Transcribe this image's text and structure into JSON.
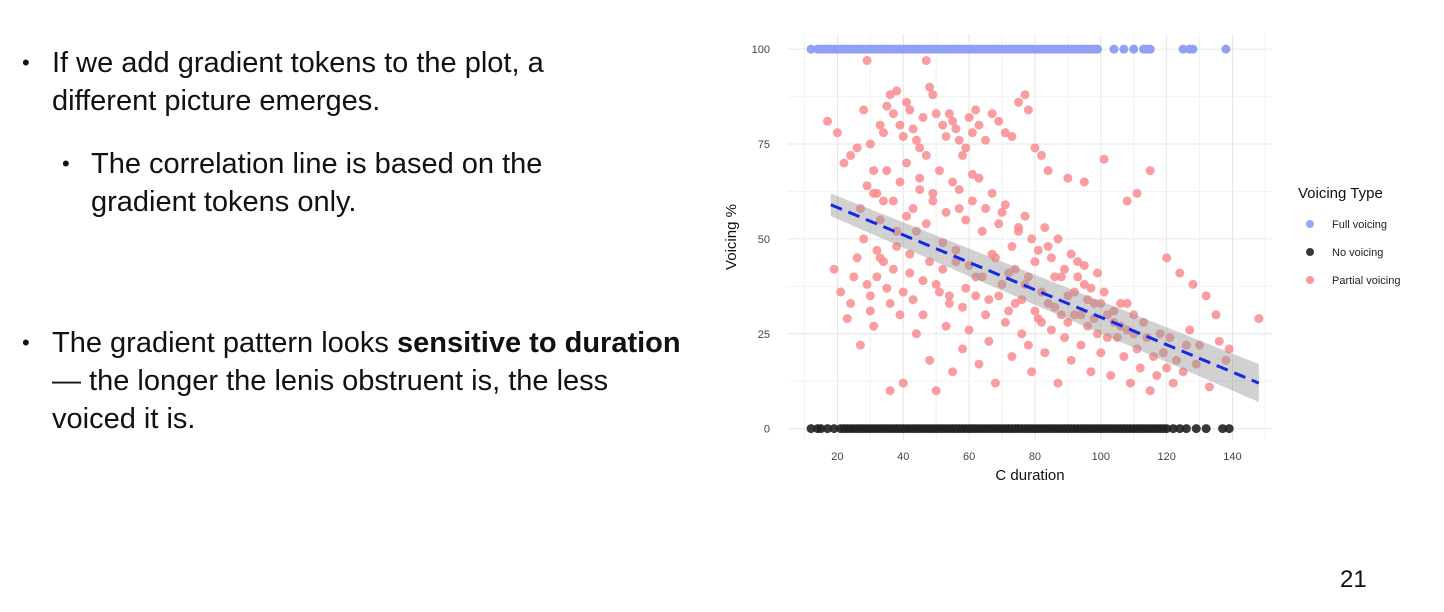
{
  "slide": {
    "bullet1": "If we add gradient tokens to the plot, a different picture emerges.",
    "bullet2": "The correlation line is based on the gradient tokens only.",
    "bullet3_pre": "The gradient pattern looks ",
    "bullet3_bold": "sensitive to duration",
    "bullet3_post": " — the longer the lenis obstruent is, the less voiced it is.",
    "page_number": "21",
    "bullet_glyph": "•"
  },
  "chart_data": {
    "type": "scatter",
    "xlabel": "C duration",
    "ylabel": "Voicing %",
    "x_ticks": [
      20,
      40,
      60,
      80,
      100,
      120,
      140
    ],
    "y_ticks": [
      0,
      25,
      50,
      75,
      100
    ],
    "xlim": [
      5,
      152
    ],
    "ylim": [
      -3,
      104
    ],
    "grid": true,
    "legend": {
      "title": "Voicing Type",
      "placement": "right",
      "entries": [
        {
          "label": "Full voicing",
          "color": "#8fa0f5"
        },
        {
          "label": "No voicing",
          "color": "#222222"
        },
        {
          "label": "Partial voicing",
          "color": "#f88c8f"
        }
      ]
    },
    "series": [
      {
        "name": "Full voicing",
        "color": "#8fa0f5",
        "y": 100,
        "x": [
          12,
          14,
          15,
          16,
          17,
          18,
          19,
          20,
          21,
          22,
          23,
          24,
          25,
          26,
          27,
          28,
          29,
          30,
          31,
          32,
          33,
          34,
          35,
          36,
          37,
          38,
          39,
          40,
          41,
          42,
          43,
          44,
          45,
          46,
          47,
          48,
          49,
          50,
          51,
          52,
          53,
          54,
          55,
          56,
          57,
          58,
          59,
          60,
          61,
          62,
          63,
          64,
          65,
          66,
          67,
          68,
          69,
          70,
          71,
          72,
          73,
          74,
          75,
          76,
          77,
          78,
          79,
          80,
          81,
          82,
          83,
          84,
          85,
          86,
          87,
          88,
          89,
          90,
          91,
          92,
          93,
          94,
          95,
          96,
          97,
          98,
          99,
          104,
          107,
          110,
          113,
          114,
          115,
          125,
          127,
          128,
          138
        ]
      },
      {
        "name": "No voicing",
        "color": "#222222",
        "y": 0,
        "x": [
          12,
          14,
          15,
          17,
          19,
          21,
          22,
          23,
          24,
          25,
          26,
          27,
          28,
          29,
          30,
          31,
          32,
          33,
          34,
          35,
          36,
          37,
          38,
          39,
          40,
          41,
          42,
          43,
          44,
          45,
          46,
          47,
          48,
          49,
          50,
          51,
          52,
          53,
          54,
          55,
          56,
          57,
          58,
          59,
          60,
          61,
          62,
          63,
          64,
          65,
          66,
          67,
          68,
          69,
          70,
          71,
          72,
          73,
          74,
          75,
          76,
          77,
          78,
          79,
          80,
          81,
          82,
          83,
          84,
          85,
          86,
          87,
          88,
          89,
          90,
          91,
          92,
          93,
          94,
          95,
          96,
          97,
          98,
          99,
          100,
          101,
          102,
          103,
          104,
          105,
          106,
          107,
          108,
          109,
          110,
          111,
          112,
          113,
          114,
          115,
          116,
          117,
          118,
          119,
          120,
          122,
          124,
          126,
          129,
          132,
          137,
          139
        ]
      },
      {
        "name": "Partial voicing",
        "color": "#f88c8f",
        "points": [
          [
            17,
            81
          ],
          [
            20,
            78
          ],
          [
            22,
            70
          ],
          [
            24,
            72
          ],
          [
            26,
            74
          ],
          [
            28,
            84
          ],
          [
            29,
            97
          ],
          [
            30,
            75
          ],
          [
            31,
            68
          ],
          [
            32,
            62
          ],
          [
            33,
            80
          ],
          [
            34,
            78
          ],
          [
            35,
            85
          ],
          [
            36,
            88
          ],
          [
            37,
            83
          ],
          [
            38,
            89
          ],
          [
            39,
            80
          ],
          [
            40,
            77
          ],
          [
            41,
            86
          ],
          [
            42,
            84
          ],
          [
            43,
            79
          ],
          [
            44,
            76
          ],
          [
            45,
            74
          ],
          [
            46,
            82
          ],
          [
            47,
            97
          ],
          [
            48,
            90
          ],
          [
            49,
            88
          ],
          [
            50,
            83
          ],
          [
            52,
            80
          ],
          [
            53,
            77
          ],
          [
            54,
            83
          ],
          [
            55,
            81
          ],
          [
            56,
            79
          ],
          [
            57,
            76
          ],
          [
            58,
            72
          ],
          [
            59,
            74
          ],
          [
            60,
            82
          ],
          [
            61,
            78
          ],
          [
            62,
            84
          ],
          [
            63,
            80
          ],
          [
            65,
            76
          ],
          [
            67,
            83
          ],
          [
            69,
            81
          ],
          [
            71,
            78
          ],
          [
            73,
            77
          ],
          [
            75,
            86
          ],
          [
            77,
            88
          ],
          [
            78,
            84
          ],
          [
            80,
            74
          ],
          [
            82,
            72
          ],
          [
            84,
            68
          ],
          [
            90,
            66
          ],
          [
            95,
            65
          ],
          [
            101,
            71
          ],
          [
            108,
            60
          ],
          [
            111,
            62
          ],
          [
            115,
            68
          ],
          [
            120,
            45
          ],
          [
            124,
            41
          ],
          [
            128,
            38
          ],
          [
            132,
            35
          ],
          [
            135,
            30
          ],
          [
            148,
            29
          ],
          [
            19,
            42
          ],
          [
            21,
            36
          ],
          [
            23,
            29
          ],
          [
            24,
            33
          ],
          [
            25,
            40
          ],
          [
            26,
            45
          ],
          [
            27,
            22
          ],
          [
            28,
            50
          ],
          [
            29,
            38
          ],
          [
            30,
            31
          ],
          [
            31,
            27
          ],
          [
            32,
            47
          ],
          [
            33,
            55
          ],
          [
            34,
            60
          ],
          [
            35,
            37
          ],
          [
            36,
            10
          ],
          [
            37,
            42
          ],
          [
            38,
            52
          ],
          [
            39,
            30
          ],
          [
            40,
            12
          ],
          [
            41,
            56
          ],
          [
            42,
            46
          ],
          [
            43,
            34
          ],
          [
            44,
            25
          ],
          [
            45,
            63
          ],
          [
            46,
            39
          ],
          [
            47,
            54
          ],
          [
            48,
            18
          ],
          [
            49,
            60
          ],
          [
            50,
            10
          ],
          [
            51,
            36
          ],
          [
            52,
            49
          ],
          [
            53,
            27
          ],
          [
            54,
            33
          ],
          [
            55,
            15
          ],
          [
            56,
            44
          ],
          [
            57,
            58
          ],
          [
            58,
            21
          ],
          [
            59,
            37
          ],
          [
            60,
            26
          ],
          [
            61,
            67
          ],
          [
            62,
            40
          ],
          [
            63,
            17
          ],
          [
            64,
            52
          ],
          [
            65,
            30
          ],
          [
            66,
            23
          ],
          [
            67,
            46
          ],
          [
            68,
            12
          ],
          [
            69,
            35
          ],
          [
            70,
            57
          ],
          [
            71,
            28
          ],
          [
            72,
            41
          ],
          [
            73,
            19
          ],
          [
            74,
            33
          ],
          [
            75,
            53
          ],
          [
            76,
            25
          ],
          [
            77,
            38
          ],
          [
            78,
            22
          ],
          [
            79,
            15
          ],
          [
            80,
            44
          ],
          [
            81,
            29
          ],
          [
            82,
            36
          ],
          [
            83,
            20
          ],
          [
            84,
            48
          ],
          [
            85,
            26
          ],
          [
            86,
            32
          ],
          [
            87,
            12
          ],
          [
            88,
            40
          ],
          [
            89,
            24
          ],
          [
            90,
            35
          ],
          [
            91,
            18
          ],
          [
            92,
            30
          ],
          [
            93,
            44
          ],
          [
            94,
            22
          ],
          [
            95,
            38
          ],
          [
            96,
            27
          ],
          [
            97,
            15
          ],
          [
            98,
            33
          ],
          [
            99,
            25
          ],
          [
            100,
            20
          ],
          [
            101,
            36
          ],
          [
            102,
            30
          ],
          [
            103,
            14
          ],
          [
            104,
            28
          ],
          [
            105,
            24
          ],
          [
            106,
            33
          ],
          [
            107,
            19
          ],
          [
            108,
            26
          ],
          [
            109,
            12
          ],
          [
            110,
            30
          ],
          [
            111,
            21
          ],
          [
            112,
            16
          ],
          [
            113,
            28
          ],
          [
            114,
            24
          ],
          [
            115,
            10
          ],
          [
            116,
            19
          ],
          [
            117,
            14
          ],
          [
            118,
            25
          ],
          [
            119,
            20
          ],
          [
            120,
            16
          ],
          [
            121,
            24
          ],
          [
            122,
            12
          ],
          [
            123,
            18
          ],
          [
            125,
            15
          ],
          [
            126,
            22
          ],
          [
            127,
            26
          ],
          [
            129,
            17
          ],
          [
            130,
            22
          ],
          [
            133,
            11
          ],
          [
            136,
            23
          ],
          [
            138,
            18
          ],
          [
            139,
            21
          ],
          [
            27,
            58
          ],
          [
            29,
            64
          ],
          [
            31,
            62
          ],
          [
            33,
            45
          ],
          [
            35,
            68
          ],
          [
            37,
            60
          ],
          [
            39,
            65
          ],
          [
            41,
            70
          ],
          [
            43,
            58
          ],
          [
            45,
            66
          ],
          [
            47,
            72
          ],
          [
            49,
            62
          ],
          [
            51,
            68
          ],
          [
            53,
            57
          ],
          [
            55,
            65
          ],
          [
            57,
            63
          ],
          [
            59,
            55
          ],
          [
            61,
            60
          ],
          [
            63,
            66
          ],
          [
            65,
            58
          ],
          [
            67,
            62
          ],
          [
            69,
            54
          ],
          [
            71,
            59
          ],
          [
            73,
            48
          ],
          [
            75,
            52
          ],
          [
            77,
            56
          ],
          [
            79,
            50
          ],
          [
            81,
            47
          ],
          [
            83,
            53
          ],
          [
            85,
            45
          ],
          [
            87,
            50
          ],
          [
            89,
            42
          ],
          [
            91,
            46
          ],
          [
            93,
            40
          ],
          [
            95,
            43
          ],
          [
            97,
            37
          ],
          [
            99,
            41
          ],
          [
            30,
            35
          ],
          [
            32,
            40
          ],
          [
            34,
            44
          ],
          [
            36,
            33
          ],
          [
            38,
            48
          ],
          [
            40,
            36
          ],
          [
            42,
            41
          ],
          [
            44,
            52
          ],
          [
            46,
            30
          ],
          [
            48,
            44
          ],
          [
            50,
            38
          ],
          [
            52,
            42
          ],
          [
            54,
            35
          ],
          [
            56,
            47
          ],
          [
            58,
            32
          ],
          [
            60,
            43
          ],
          [
            62,
            35
          ],
          [
            64,
            40
          ],
          [
            66,
            34
          ],
          [
            68,
            45
          ],
          [
            70,
            38
          ],
          [
            72,
            31
          ],
          [
            74,
            42
          ],
          [
            76,
            34
          ],
          [
            78,
            40
          ],
          [
            80,
            31
          ],
          [
            82,
            28
          ],
          [
            84,
            33
          ],
          [
            86,
            40
          ],
          [
            88,
            30
          ],
          [
            90,
            28
          ],
          [
            92,
            36
          ],
          [
            94,
            30
          ],
          [
            96,
            34
          ],
          [
            98,
            29
          ],
          [
            100,
            33
          ],
          [
            102,
            24
          ],
          [
            104,
            31
          ],
          [
            106,
            27
          ],
          [
            108,
            33
          ],
          [
            110,
            25
          ]
        ]
      }
    ],
    "fit_line": {
      "label": "linear fit, Partial voicing only",
      "color": "#1428e6",
      "x": [
        18,
        148
      ],
      "y": [
        59,
        12
      ],
      "ci_upper": [
        62,
        17
      ],
      "ci_lower": [
        56,
        7
      ]
    }
  }
}
